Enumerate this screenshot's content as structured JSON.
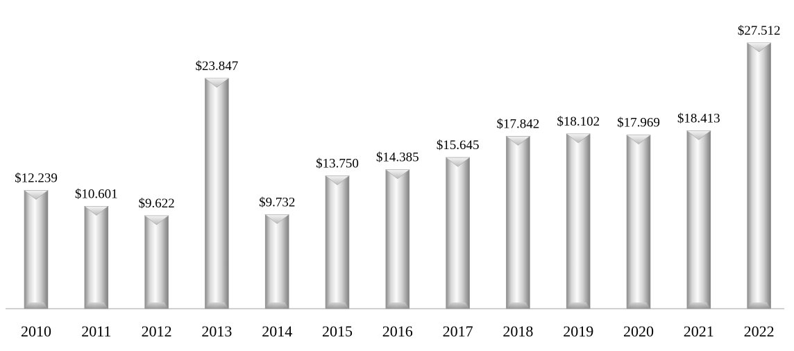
{
  "chart_data": {
    "type": "bar",
    "categories": [
      "2010",
      "2011",
      "2012",
      "2013",
      "2014",
      "2015",
      "2016",
      "2017",
      "2018",
      "2019",
      "2020",
      "2021",
      "2022"
    ],
    "values": [
      12.239,
      10.601,
      9.622,
      23.847,
      9.732,
      13.75,
      14.385,
      15.645,
      17.842,
      18.102,
      17.969,
      18.413,
      27.512
    ],
    "value_labels": [
      "$12.239",
      "$10.601",
      "$9.622",
      "$23.847",
      "$9.732",
      "$13.750",
      "$14.385",
      "$15.645",
      "$17.842",
      "$18.102",
      "$17.969",
      "$18.413",
      "$27.512"
    ],
    "title": "",
    "xlabel": "",
    "ylabel": "",
    "ylim": [
      0,
      30
    ],
    "grid": false,
    "legend": "none",
    "bar_style": "silver-gradient cylinder with chevron top"
  }
}
